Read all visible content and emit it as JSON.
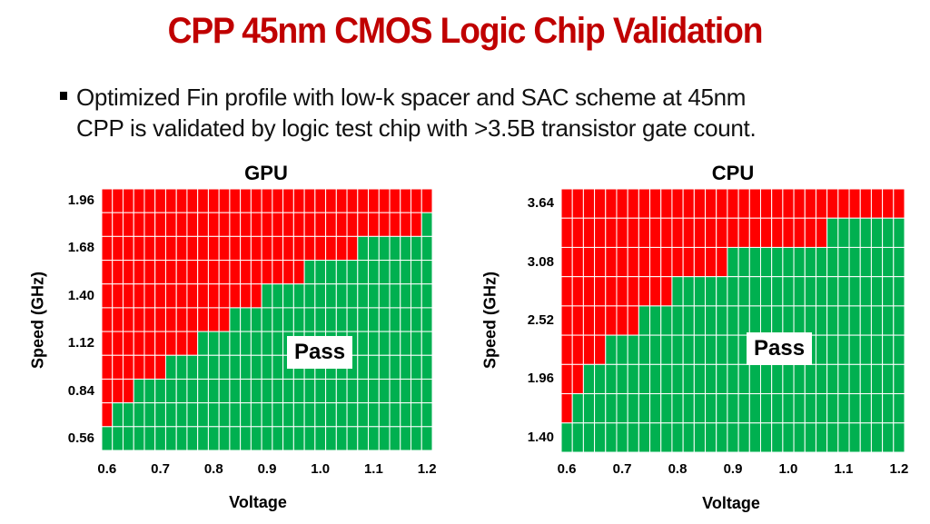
{
  "slide": {
    "title": "CPP 45nm CMOS Logic Chip Validation",
    "bullet_line1": "Optimized Fin profile with low-k spacer and SAC scheme at 45nm",
    "bullet_line2": "CPP is validated by logic test chip with >3.5B transistor gate count."
  },
  "colors": {
    "title": "#c00000",
    "fail": "#ff0000",
    "pass": "#00b050",
    "grid": "#ffffff"
  },
  "chart_data": [
    {
      "type": "heatmap",
      "title": "GPU",
      "xlabel": "Voltage",
      "ylabel": "Speed (GHz)",
      "x_tick_labels": [
        "0.6",
        "0.7",
        "0.8",
        "0.9",
        "1.0",
        "1.1",
        "1.2"
      ],
      "y_tick_labels": [
        "1.96",
        "1.68",
        "1.40",
        "1.12",
        "0.84",
        "0.56"
      ],
      "x": [
        0.6,
        0.62,
        0.64,
        0.66,
        0.68,
        0.7,
        0.72,
        0.74,
        0.76,
        0.78,
        0.8,
        0.82,
        0.84,
        0.86,
        0.88,
        0.9,
        0.92,
        0.94,
        0.96,
        0.98,
        1.0,
        1.02,
        1.04,
        1.06,
        1.08,
        1.1,
        1.12,
        1.14,
        1.16,
        1.18,
        1.2
      ],
      "y": [
        1.96,
        1.82,
        1.68,
        1.54,
        1.4,
        1.26,
        1.12,
        0.98,
        0.84,
        0.7,
        0.56
      ],
      "max_pass_speed": [
        0.56,
        0.7,
        0.7,
        0.84,
        0.84,
        0.84,
        0.98,
        0.98,
        0.98,
        1.12,
        1.12,
        1.12,
        1.26,
        1.26,
        1.26,
        1.4,
        1.4,
        1.4,
        1.4,
        1.54,
        1.54,
        1.54,
        1.54,
        1.54,
        1.68,
        1.68,
        1.68,
        1.68,
        1.68,
        1.68,
        1.82
      ],
      "annotation": "Pass"
    },
    {
      "type": "heatmap",
      "title": "CPU",
      "xlabel": "Voltage",
      "ylabel": "Speed (GHz)",
      "x_tick_labels": [
        "0.6",
        "0.7",
        "0.8",
        "0.9",
        "1.0",
        "1.1",
        "1.2"
      ],
      "y_tick_labels": [
        "3.64",
        "3.08",
        "2.52",
        "1.96",
        "1.40"
      ],
      "x": [
        0.6,
        0.62,
        0.64,
        0.66,
        0.68,
        0.7,
        0.72,
        0.74,
        0.76,
        0.78,
        0.8,
        0.82,
        0.84,
        0.86,
        0.88,
        0.9,
        0.92,
        0.94,
        0.96,
        0.98,
        1.0,
        1.02,
        1.04,
        1.06,
        1.08,
        1.1,
        1.12,
        1.14,
        1.16,
        1.18,
        1.2
      ],
      "y": [
        3.64,
        3.36,
        3.08,
        2.8,
        2.52,
        2.24,
        1.96,
        1.68,
        1.4
      ],
      "max_pass_speed": [
        1.4,
        1.68,
        1.96,
        1.96,
        2.24,
        2.24,
        2.24,
        2.52,
        2.52,
        2.52,
        2.8,
        2.8,
        2.8,
        2.8,
        2.8,
        3.08,
        3.08,
        3.08,
        3.08,
        3.08,
        3.08,
        3.08,
        3.08,
        3.08,
        3.36,
        3.36,
        3.36,
        3.36,
        3.36,
        3.36,
        3.36
      ],
      "annotation": "Pass"
    }
  ]
}
